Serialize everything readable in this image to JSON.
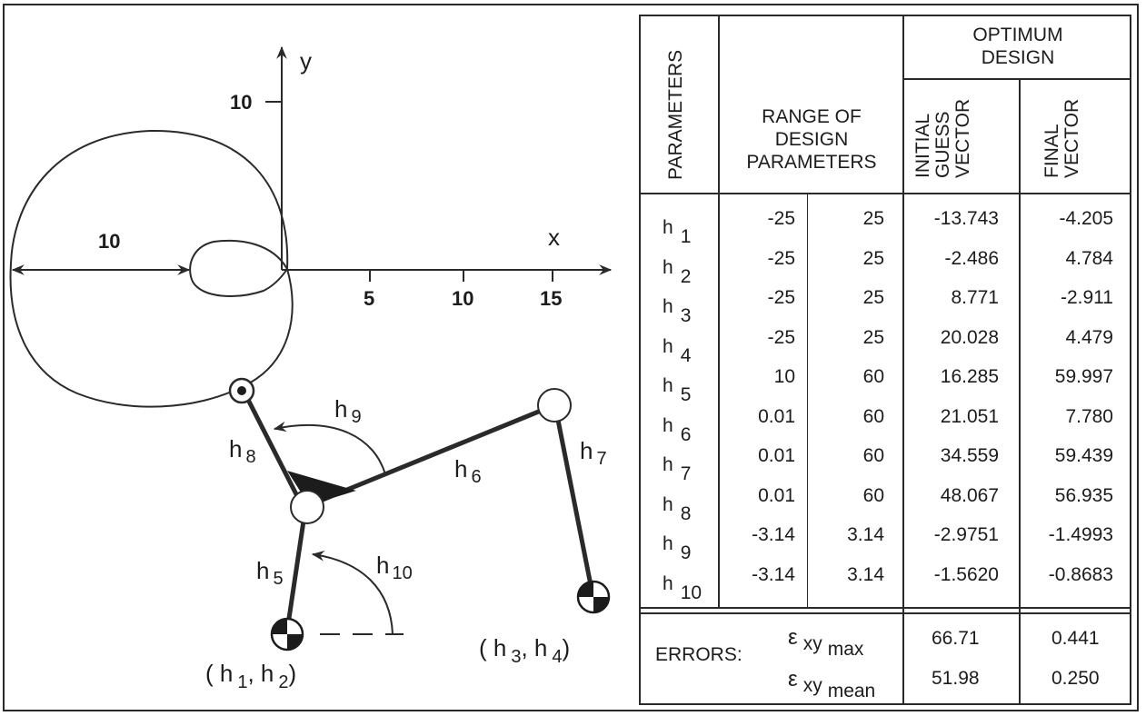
{
  "diagram": {
    "axes": {
      "x_label": "x",
      "y_label": "y",
      "x_ticks": [
        "5",
        "10",
        "15"
      ],
      "y_tick": "10",
      "dimension_label": "10"
    },
    "link_labels": {
      "h5": {
        "base": "h",
        "sub": "5"
      },
      "h6": {
        "base": "h",
        "sub": "6"
      },
      "h7": {
        "base": "h",
        "sub": "7"
      },
      "h8": {
        "base": "h",
        "sub": "8"
      },
      "h9": {
        "base": "h",
        "sub": "9"
      },
      "h10": {
        "base": "h",
        "sub": "10"
      }
    },
    "pivots": {
      "left": {
        "open": "( h",
        "sub1": "1",
        "mid": ", h",
        "sub2": "2",
        "close": ")"
      },
      "right": {
        "open": "( h",
        "sub1": "3",
        "mid": ", h",
        "sub2": "4",
        "close": ")"
      }
    }
  },
  "table": {
    "headers": {
      "parameters": "PARAMETERS",
      "range": [
        "RANGE OF",
        "DESIGN",
        "PARAMETERS"
      ],
      "optimum": [
        "OPTIMUM",
        "DESIGN"
      ],
      "initial": [
        "INITIAL",
        "GUESS",
        "VECTOR"
      ],
      "final": [
        "FINAL",
        "VECTOR"
      ]
    },
    "rows": [
      {
        "param": "h",
        "sub": "1",
        "min": "-25",
        "max": "25",
        "initial": "-13.743",
        "final": "-4.205"
      },
      {
        "param": "h",
        "sub": "2",
        "min": "-25",
        "max": "25",
        "initial": "-2.486",
        "final": "4.784"
      },
      {
        "param": "h",
        "sub": "3",
        "min": "-25",
        "max": "25",
        "initial": "8.771",
        "final": "-2.911"
      },
      {
        "param": "h",
        "sub": "4",
        "min": "-25",
        "max": "25",
        "initial": "20.028",
        "final": "4.479"
      },
      {
        "param": "h",
        "sub": "5",
        "min": "10",
        "max": "60",
        "initial": "16.285",
        "final": "59.997"
      },
      {
        "param": "h",
        "sub": "6",
        "min": "0.01",
        "max": "60",
        "initial": "21.051",
        "final": "7.780"
      },
      {
        "param": "h",
        "sub": "7",
        "min": "0.01",
        "max": "60",
        "initial": "34.559",
        "final": "59.439"
      },
      {
        "param": "h",
        "sub": "8",
        "min": "0.01",
        "max": "60",
        "initial": "48.067",
        "final": "56.935"
      },
      {
        "param": "h",
        "sub": "9",
        "min": "-3.14",
        "max": "3.14",
        "initial": "-2.9751",
        "final": "-1.4993"
      },
      {
        "param": "h",
        "sub": "10",
        "min": "-3.14",
        "max": "3.14",
        "initial": "-1.5620",
        "final": "-0.8683"
      }
    ],
    "errors": {
      "label": "ERRORS:",
      "max": {
        "symbol": "ε",
        "sub": "xy",
        "sub2": "max",
        "initial": "66.71",
        "final": "0.441"
      },
      "mean": {
        "symbol": "ε",
        "sub": "xy",
        "sub2": "mean",
        "initial": "51.98",
        "final": "0.250"
      }
    }
  }
}
